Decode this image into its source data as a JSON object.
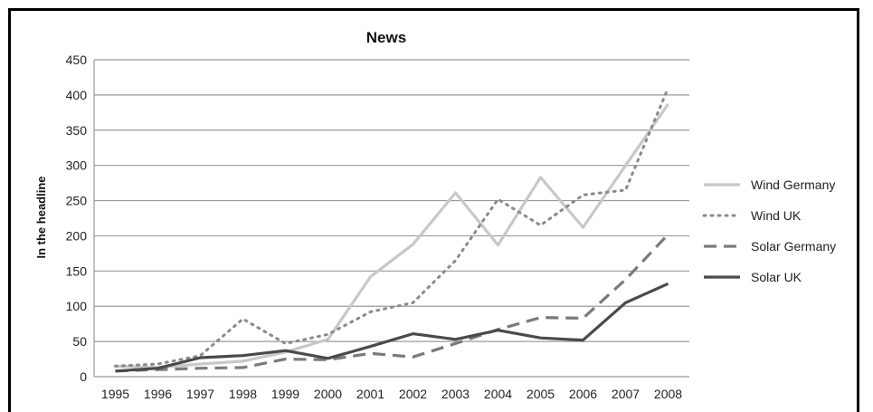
{
  "chart_data": {
    "type": "line",
    "title": "News",
    "xlabel": "",
    "ylabel": "In the headline",
    "x": [
      "1995",
      "1996",
      "1997",
      "1998",
      "1999",
      "2000",
      "2001",
      "2002",
      "2003",
      "2004",
      "2005",
      "2006",
      "2007",
      "2008"
    ],
    "ylim": [
      0,
      450
    ],
    "yticks": [
      0,
      50,
      100,
      150,
      200,
      250,
      300,
      350,
      400,
      450
    ],
    "grid": true,
    "legend": "right",
    "series": [
      {
        "name": "Wind Germany",
        "color": "#c8c8c8",
        "style": "solid",
        "values": [
          15,
          13,
          18,
          22,
          35,
          53,
          142,
          188,
          261,
          187,
          283,
          212,
          300,
          387
        ]
      },
      {
        "name": "Wind UK",
        "color": "#8a8a8a",
        "style": "dotted",
        "values": [
          15,
          18,
          30,
          82,
          47,
          60,
          92,
          105,
          165,
          252,
          215,
          258,
          265,
          410
        ]
      },
      {
        "name": "Solar Germany",
        "color": "#7a7a7a",
        "style": "dashed",
        "values": [
          8,
          10,
          12,
          13,
          25,
          24,
          33,
          28,
          47,
          67,
          84,
          83,
          138,
          202
        ]
      },
      {
        "name": "Solar UK",
        "color": "#4a4a4a",
        "style": "solid",
        "values": [
          8,
          12,
          27,
          30,
          37,
          26,
          43,
          61,
          53,
          66,
          55,
          52,
          105,
          132
        ]
      }
    ]
  }
}
